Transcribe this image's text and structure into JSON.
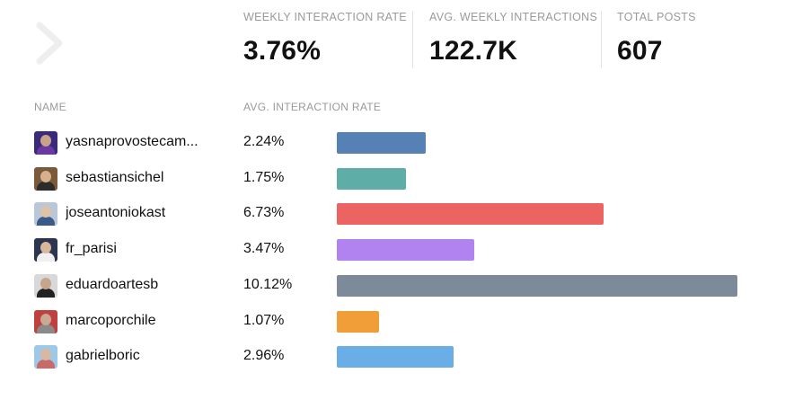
{
  "nav": {
    "icon": "chevron-right-icon"
  },
  "stats": [
    {
      "label": "WEEKLY INTERACTION RATE",
      "value": "3.76%"
    },
    {
      "label": "AVG. WEEKLY INTERACTIONS",
      "value": "122.7K"
    },
    {
      "label": "TOTAL POSTS",
      "value": "607"
    }
  ],
  "table": {
    "headers": {
      "name": "NAME",
      "rate": "AVG. INTERACTION RATE"
    },
    "max_rate": 10.12,
    "rows": [
      {
        "name": "yasnaprovostecam...",
        "rate_label": "2.24%",
        "rate": 2.24,
        "color": "#5581b4",
        "avatar_bg": "#3a2a7a",
        "avatar_skin": "#c9a28a",
        "avatar_body": "#6a3aa0"
      },
      {
        "name": "sebastiansichel",
        "rate_label": "1.75%",
        "rate": 1.75,
        "color": "#5fada7",
        "avatar_bg": "#7a5a3a",
        "avatar_skin": "#d7b08e",
        "avatar_body": "#2c2c2c"
      },
      {
        "name": "joseantoniokast",
        "rate_label": "6.73%",
        "rate": 6.73,
        "color": "#eb6461",
        "avatar_bg": "#b9c7d8",
        "avatar_skin": "#e0c2a5",
        "avatar_body": "#3a5a8a"
      },
      {
        "name": "fr_parisi",
        "rate_label": "3.47%",
        "rate": 3.47,
        "color": "#b183f0",
        "avatar_bg": "#2b3550",
        "avatar_skin": "#d9b79a",
        "avatar_body": "#f0f0f0"
      },
      {
        "name": "eduardoartesb",
        "rate_label": "10.12%",
        "rate": 10.12,
        "color": "#7c8a99",
        "avatar_bg": "#d8d8d8",
        "avatar_skin": "#c7a58a",
        "avatar_body": "#222222"
      },
      {
        "name": "marcoporchile",
        "rate_label": "1.07%",
        "rate": 1.07,
        "color": "#f29e38",
        "avatar_bg": "#c04040",
        "avatar_skin": "#c9a894",
        "avatar_body": "#8a8a8a"
      },
      {
        "name": "gabrielboric",
        "rate_label": "2.96%",
        "rate": 2.96,
        "color": "#6aaee8",
        "avatar_bg": "#9ec8e8",
        "avatar_skin": "#d8b8a0",
        "avatar_body": "#c76a6a"
      }
    ]
  }
}
